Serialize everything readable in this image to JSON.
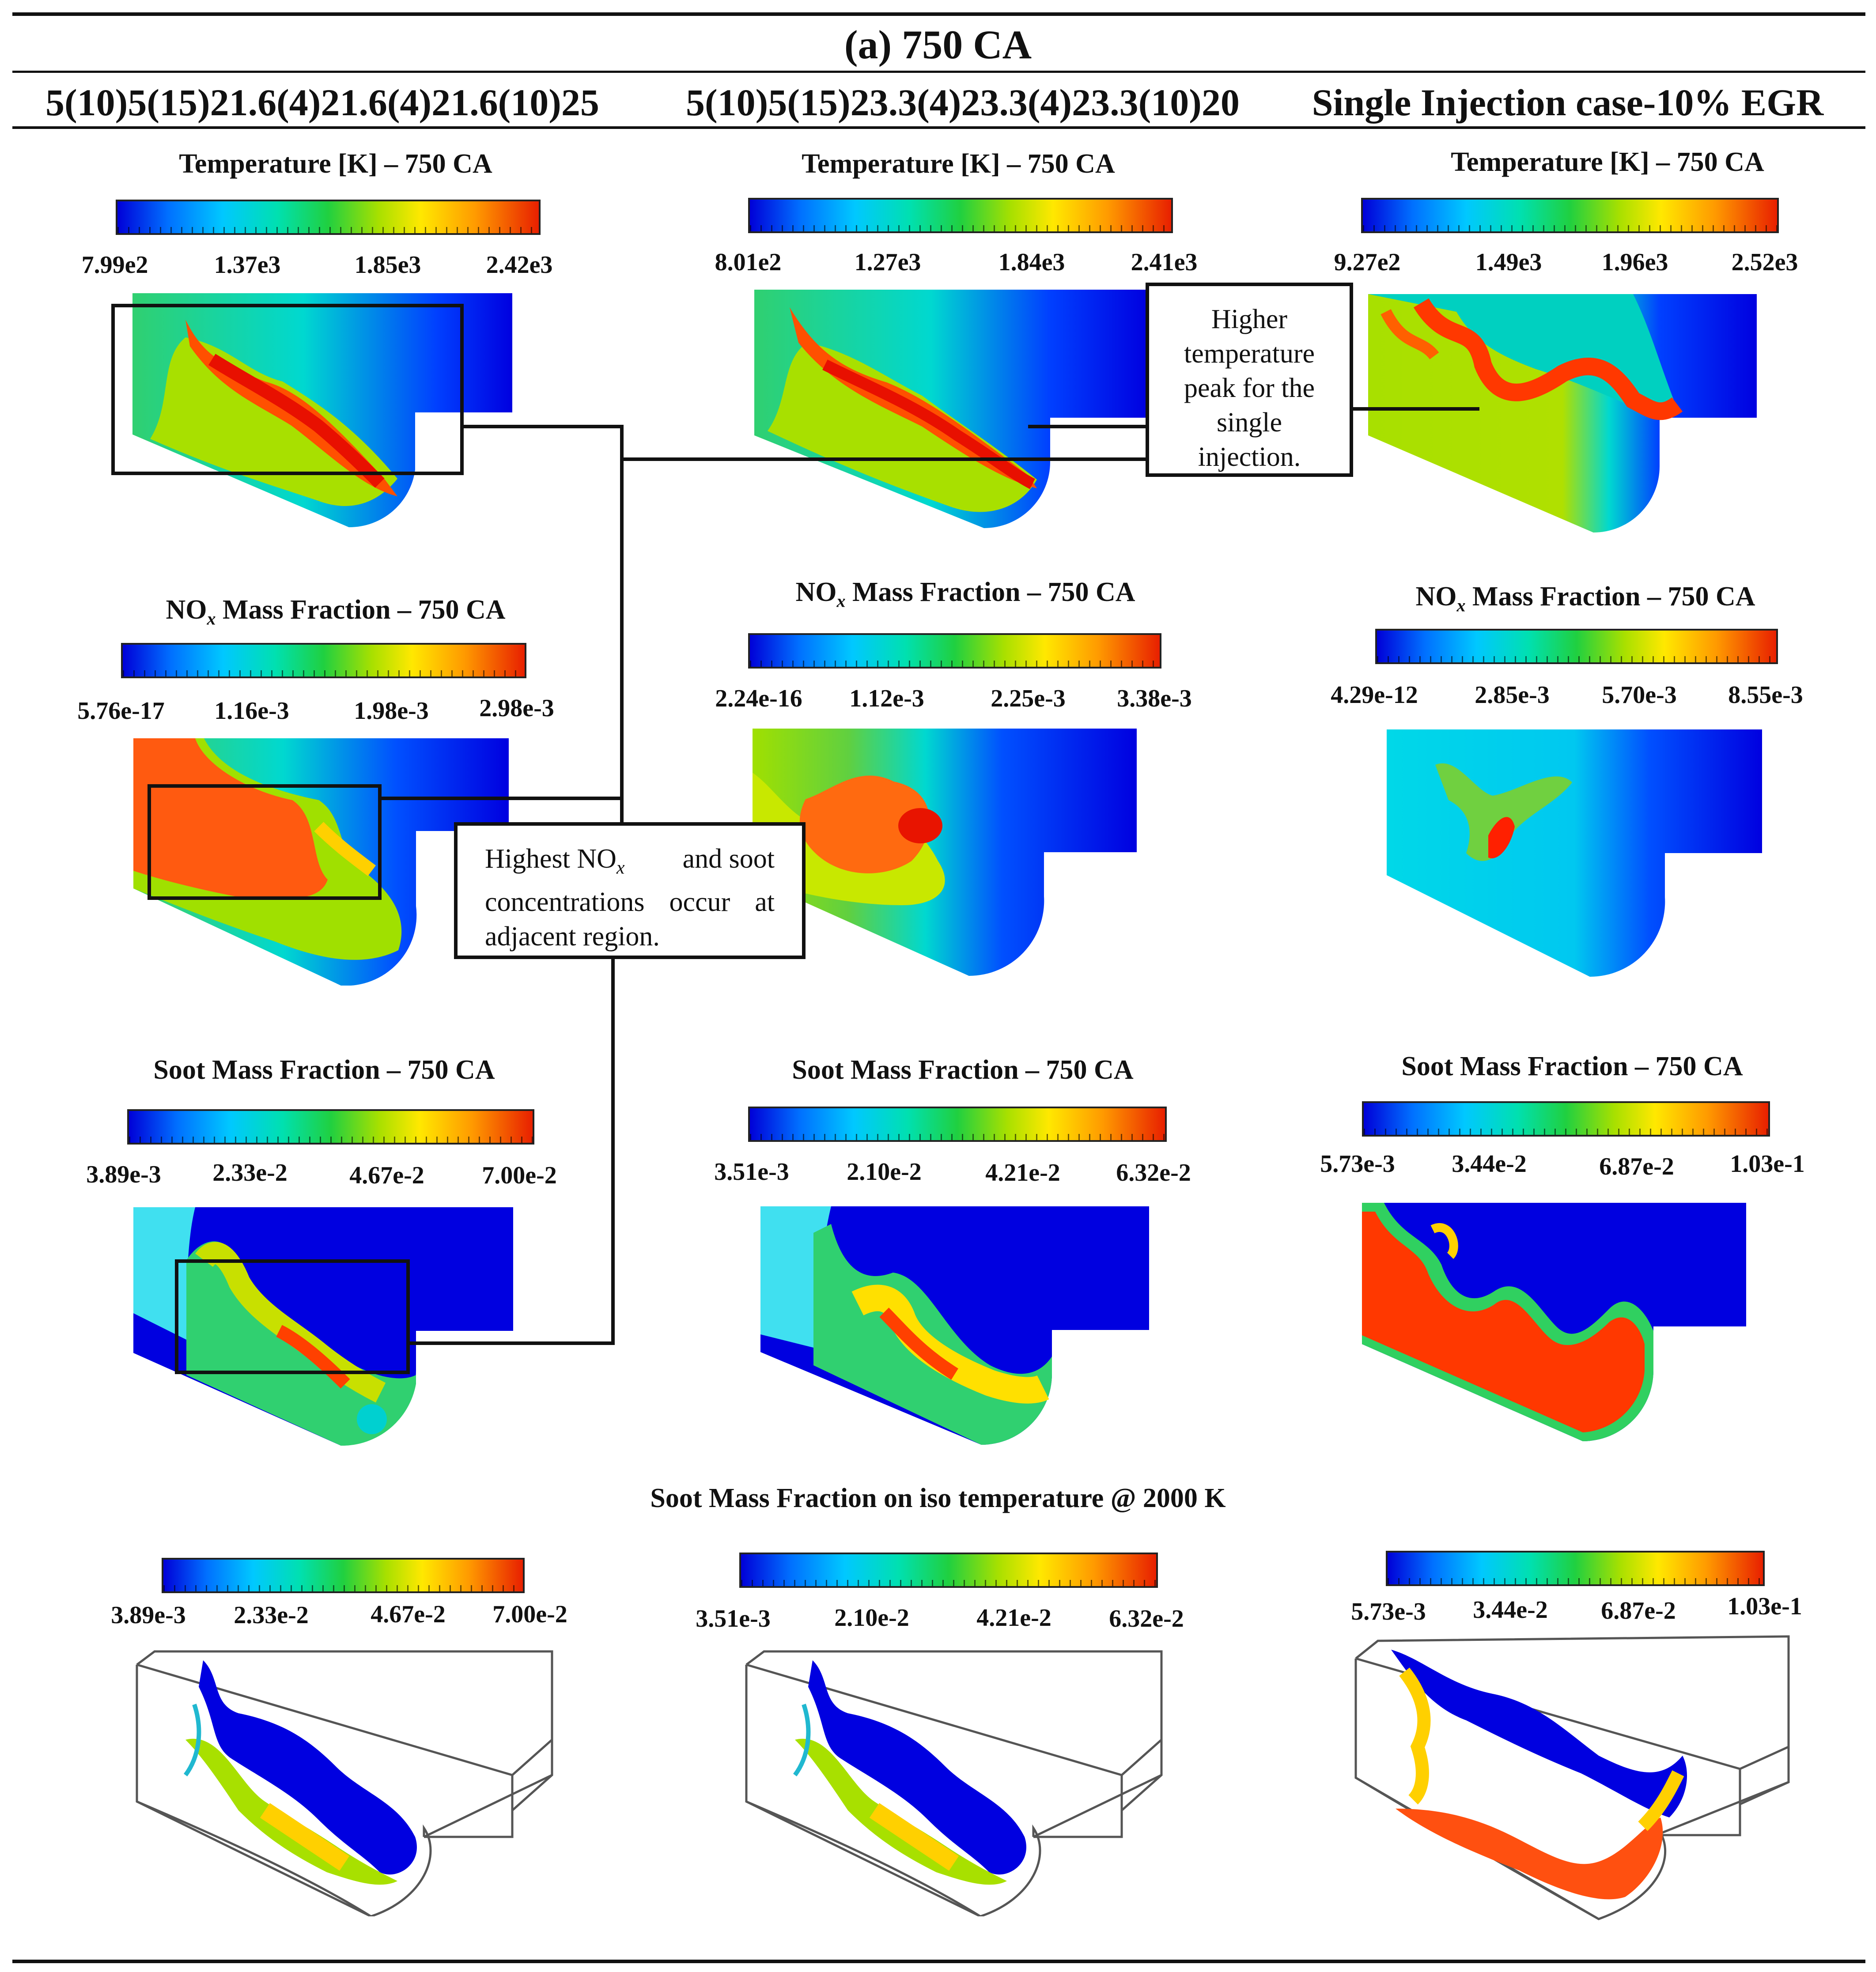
{
  "figure_title": "(a) 750 CA",
  "columns": [
    "5(10)5(15)21.6(4)21.6(4)21.6(10)25",
    "5(10)5(15)23.3(4)23.3(4)23.3(10)20",
    "Single Injection case-10% EGR"
  ],
  "panels": {
    "temperature": [
      {
        "title": "Temperature [K] – 750 CA",
        "ticks": [
          "7.99e2",
          "1.37e3",
          "1.85e3",
          "2.42e3"
        ]
      },
      {
        "title": "Temperature [K] – 750 CA",
        "ticks": [
          "8.01e2",
          "1.27e3",
          "1.84e3",
          "2.41e3"
        ]
      },
      {
        "title": "Temperature [K] – 750 CA",
        "ticks": [
          "9.27e2",
          "1.49e3",
          "1.96e3",
          "2.52e3"
        ]
      }
    ],
    "nox": [
      {
        "title_main": "NO",
        "title_sub": "x",
        "title_rest": " Mass Fraction – 750 CA",
        "ticks": [
          "5.76e-17",
          "1.16e-3",
          "1.98e-3",
          "2.98e-3"
        ]
      },
      {
        "title_main": "NO",
        "title_sub": "x",
        "title_rest": " Mass Fraction – 750 CA",
        "ticks": [
          "2.24e-16",
          "1.12e-3",
          "2.25e-3",
          "3.38e-3"
        ]
      },
      {
        "title_main": "NO",
        "title_sub": "x",
        "title_rest": " Mass Fraction – 750 CA",
        "ticks": [
          "4.29e-12",
          "2.85e-3",
          "5.70e-3",
          "8.55e-3"
        ]
      }
    ],
    "soot": [
      {
        "title": "Soot Mass Fraction – 750 CA",
        "ticks": [
          "3.89e-3",
          "2.33e-2",
          "4.67e-2",
          "7.00e-2"
        ]
      },
      {
        "title": "Soot Mass Fraction – 750 CA",
        "ticks": [
          "3.51e-3",
          "2.10e-2",
          "4.21e-2",
          "6.32e-2"
        ]
      },
      {
        "title": "Soot Mass Fraction – 750 CA",
        "ticks": [
          "5.73e-3",
          "3.44e-2",
          "6.87e-2",
          "1.03e-1"
        ]
      }
    ],
    "iso": {
      "title": "Soot Mass Fraction on iso temperature @ 2000 K",
      "ticks": [
        [
          "3.89e-3",
          "2.33e-2",
          "4.67e-2",
          "7.00e-2"
        ],
        [
          "3.51e-3",
          "2.10e-2",
          "4.21e-2",
          "6.32e-2"
        ],
        [
          "5.73e-3",
          "3.44e-2",
          "6.87e-2",
          "1.03e-1"
        ]
      ]
    }
  },
  "annotations": {
    "temperature_peak": [
      "Higher",
      "temperature",
      "peak for the",
      "single",
      "injection."
    ],
    "nox_soot": {
      "line1_pre": "Highest NO",
      "line1_sub": "x",
      "line1_post": " and soot",
      "line2": "concentrations occur at",
      "line3": "adjacent region."
    }
  }
}
